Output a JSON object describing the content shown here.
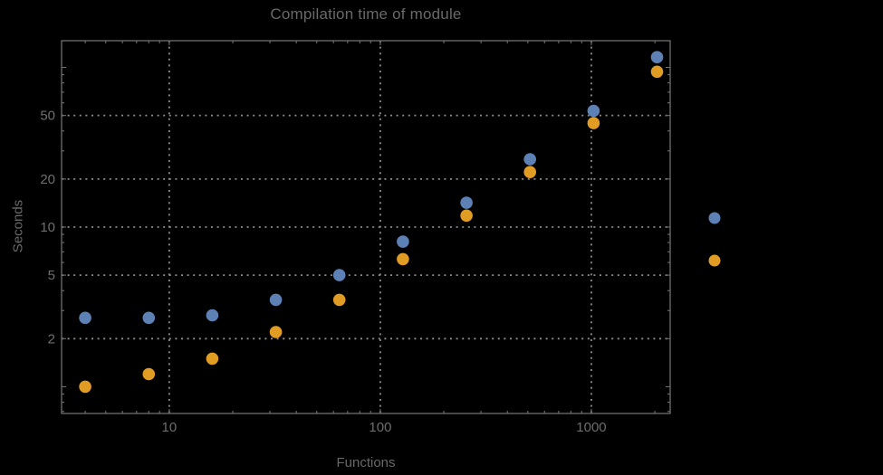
{
  "title": "Compilation time of module",
  "colors": {
    "background": "#000000",
    "frame": "#6f6f6f",
    "grid": "#8c8c8c",
    "text": "#6e6e6e",
    "series_blue": "#5e81b5",
    "series_orange": "#e19c24"
  },
  "chart_data": {
    "type": "scatter",
    "title": "Compilation time of module",
    "xlabel": "Functions",
    "ylabel": "Seconds",
    "x_scale": "log",
    "y_scale": "log",
    "xlim": [
      3.09,
      2363
    ],
    "ylim": [
      0.68,
      147
    ],
    "x_ticks": [
      10,
      100,
      1000
    ],
    "y_ticks": [
      2,
      5,
      10,
      20,
      50
    ],
    "y_unlabeled_ticks": [
      1,
      100
    ],
    "grid": "dotted lines at labeled ticks only",
    "frame": true,
    "legend": {
      "position": "outside-right",
      "entries": [
        {
          "label": "",
          "marker_color": "#5e81b5"
        },
        {
          "label": "",
          "marker_color": "#e19c24"
        }
      ]
    },
    "x": [
      4,
      8,
      16,
      32,
      64,
      128,
      256,
      512,
      1024,
      2048
    ],
    "series": [
      {
        "name": "blue",
        "color": "#5e81b5",
        "values": [
          2.7,
          2.7,
          2.8,
          3.5,
          5.0,
          8.1,
          14.2,
          26.6,
          53.5,
          116
        ]
      },
      {
        "name": "orange",
        "color": "#e19c24",
        "values": [
          1.0,
          1.2,
          1.5,
          2.2,
          3.5,
          6.3,
          11.8,
          22.1,
          44.8,
          94
        ]
      }
    ]
  }
}
